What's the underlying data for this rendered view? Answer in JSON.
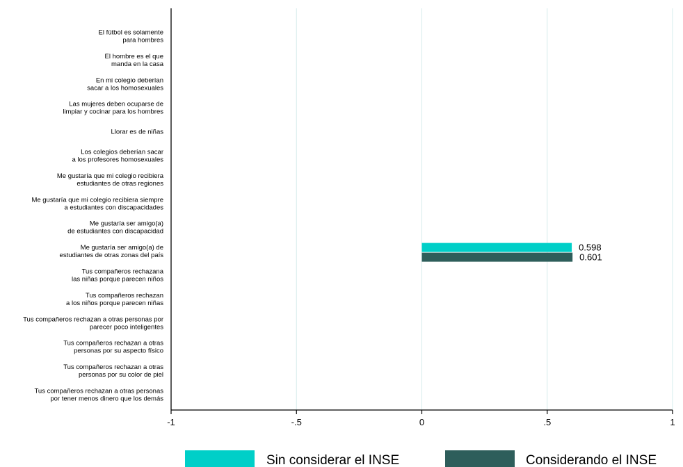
{
  "chart_data": {
    "type": "bar",
    "orientation": "horizontal",
    "categories": [
      [
        "El fútbol es solamente",
        "para hombres"
      ],
      [
        "El hombre es el que",
        "manda en la casa"
      ],
      [
        "En mi colegio deberían",
        "sacar a los homosexuales"
      ],
      [
        "Las mujeres deben ocuparse de",
        "limpiar y cocinar para los hombres"
      ],
      [
        "Llorar es de niñas"
      ],
      [
        "Los colegios deberían sacar",
        "a los profesores homosexuales"
      ],
      [
        "Me gustaría que mi colegio recibiera",
        "estudiantes de otras regiones"
      ],
      [
        "Me gustaría que mi colegio recibiera siempre",
        "a estudiantes con discapacidades"
      ],
      [
        "Me gustaría ser amigo(a)",
        "de estudiantes con discapacidad"
      ],
      [
        "Me gustaría ser amigo(a) de",
        "estudiantes de otras zonas del país"
      ],
      [
        "Tus compañeros rechazana",
        "las niñas porque parecen niños"
      ],
      [
        "Tus compañeros rechazan",
        "a los niños porque parecen niñas"
      ],
      [
        "Tus compañeros rechazan a otras personas por",
        "parecer poco inteligentes"
      ],
      [
        "Tus compañeros rechazan a otras",
        "personas por su aspecto físico"
      ],
      [
        "Tus compañeros rechazan a otras",
        "personas por su color de piel"
      ],
      [
        "Tus compañeros rechazan a otras personas",
        "por tener menos dinero que los demás"
      ]
    ],
    "series": [
      {
        "name": "Sin considerar el INSE",
        "color": "#00CFC8",
        "values": [
          null,
          null,
          null,
          null,
          null,
          null,
          null,
          null,
          null,
          0.598,
          null,
          null,
          null,
          null,
          null,
          null
        ]
      },
      {
        "name": "Considerando el INSE",
        "color": "#2E5E5B",
        "values": [
          null,
          null,
          null,
          null,
          null,
          null,
          null,
          null,
          null,
          0.601,
          null,
          null,
          null,
          null,
          null,
          null
        ]
      }
    ],
    "data_labels": [
      {
        "series": 0,
        "category": 9,
        "text": "0.598"
      },
      {
        "series": 1,
        "category": 9,
        "text": "0.601"
      }
    ],
    "xlim": [
      -1,
      1
    ],
    "xticks": [
      -1,
      -0.5,
      0,
      0.5,
      1
    ],
    "xtick_labels": [
      "-1",
      "-.5",
      "0",
      ".5",
      "1"
    ],
    "grid": "vertical",
    "grid_color": "#D6ECEC",
    "legend_position": "bottom",
    "title": "",
    "xlabel": "",
    "ylabel": ""
  }
}
